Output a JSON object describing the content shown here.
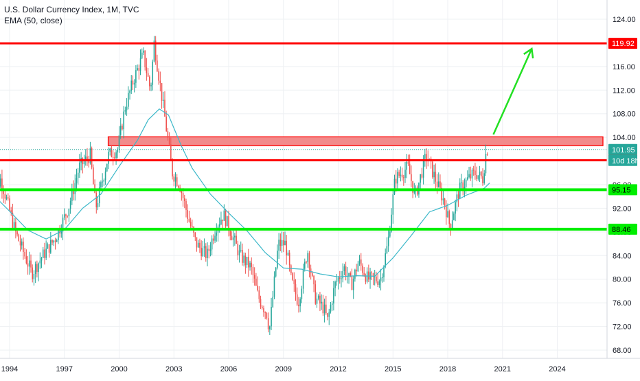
{
  "legend": {
    "title": "U.S. Dollar Currency Index, 1M, TVC",
    "indicator": "EMA (50, close)"
  },
  "colors": {
    "up": "#26a69a",
    "down": "#ef5350",
    "ema": "#3cb8c9",
    "resistance": "#ff0000",
    "support": "#00ee00",
    "zone_fill": "#f28b8b",
    "arrow": "#22e022",
    "last_price": "#26a69a",
    "countdown": "#26a69a"
  },
  "chart_data": {
    "type": "candlestick",
    "x_range": [
      1993.0,
      2026.6
    ],
    "ylim": [
      66.0,
      126.0
    ],
    "x_ticks": [
      "1994",
      "1997",
      "2000",
      "2003",
      "2006",
      "2009",
      "2012",
      "2015",
      "2018",
      "2021",
      "2024"
    ],
    "y_ticks": [
      "68.00",
      "72.00",
      "76.00",
      "80.00",
      "84.00",
      "88.00",
      "92.00",
      "96.00",
      "100.00",
      "104.00",
      "108.00",
      "112.00",
      "116.00",
      "120.00",
      "124.00"
    ],
    "candle_anchors": [
      [
        1993.0,
        93
      ],
      [
        1993.6,
        97
      ],
      [
        1994.4,
        88
      ],
      [
        1995.3,
        81
      ],
      [
        1995.9,
        84
      ],
      [
        1996.6,
        87
      ],
      [
        1997.3,
        92
      ],
      [
        1997.9,
        99
      ],
      [
        1998.5,
        101
      ],
      [
        1998.8,
        92
      ],
      [
        1999.5,
        101
      ],
      [
        2000.0,
        102
      ],
      [
        2000.4,
        109
      ],
      [
        2000.9,
        114
      ],
      [
        2001.4,
        118
      ],
      [
        2001.8,
        112
      ],
      [
        2002.0,
        120
      ],
      [
        2002.6,
        107
      ],
      [
        2003.0,
        98
      ],
      [
        2003.4,
        96
      ],
      [
        2003.9,
        90
      ],
      [
        2004.3,
        86
      ],
      [
        2004.9,
        84
      ],
      [
        2005.4,
        89
      ],
      [
        2005.8,
        91
      ],
      [
        2006.2,
        88
      ],
      [
        2006.7,
        84
      ],
      [
        2007.3,
        82
      ],
      [
        2007.7,
        77
      ],
      [
        2008.2,
        74
      ],
      [
        2008.3,
        71
      ],
      [
        2008.8,
        86
      ],
      [
        2009.2,
        86
      ],
      [
        2009.5,
        80
      ],
      [
        2009.9,
        76
      ],
      [
        2010.4,
        85
      ],
      [
        2010.8,
        77
      ],
      [
        2011.3,
        75
      ],
      [
        2011.5,
        73
      ],
      [
        2011.9,
        79
      ],
      [
        2012.4,
        82
      ],
      [
        2012.8,
        79
      ],
      [
        2013.2,
        83
      ],
      [
        2013.7,
        80
      ],
      [
        2014.1,
        80
      ],
      [
        2014.4,
        80
      ],
      [
        2014.8,
        86
      ],
      [
        2015.2,
        97
      ],
      [
        2015.9,
        99
      ],
      [
        2016.3,
        94
      ],
      [
        2016.9,
        101
      ],
      [
        2017.4,
        97
      ],
      [
        2017.9,
        93
      ],
      [
        2018.2,
        89
      ],
      [
        2018.7,
        95
      ],
      [
        2019.2,
        97
      ],
      [
        2019.6,
        98
      ],
      [
        2020.0,
        97
      ],
      [
        2020.2,
        102
      ]
    ],
    "ema_points": [
      [
        1993.0,
        94.6
      ],
      [
        1994.0,
        91.5
      ],
      [
        1995.0,
        88.3
      ],
      [
        1996.0,
        86.8
      ],
      [
        1997.0,
        88.4
      ],
      [
        1998.0,
        92.0
      ],
      [
        1999.0,
        94.4
      ],
      [
        2000.0,
        99.1
      ],
      [
        2001.0,
        103.5
      ],
      [
        2001.6,
        107.0
      ],
      [
        2002.2,
        108.8
      ],
      [
        2002.7,
        107.8
      ],
      [
        2003.4,
        102.6
      ],
      [
        2004.0,
        98.8
      ],
      [
        2005.0,
        94.4
      ],
      [
        2006.0,
        91.2
      ],
      [
        2007.0,
        88.2
      ],
      [
        2008.0,
        84.5
      ],
      [
        2009.0,
        81.9
      ],
      [
        2010.0,
        81.7
      ],
      [
        2011.0,
        80.9
      ],
      [
        2012.0,
        80.4
      ],
      [
        2013.0,
        80.6
      ],
      [
        2014.0,
        80.5
      ],
      [
        2015.0,
        83.6
      ],
      [
        2016.0,
        87.4
      ],
      [
        2017.0,
        91.4
      ],
      [
        2018.0,
        92.5
      ],
      [
        2019.0,
        94.2
      ],
      [
        2020.0,
        95.4
      ],
      [
        2020.3,
        96.3
      ]
    ],
    "levels": [
      {
        "label": "119.92",
        "price": 119.92,
        "kind": "resistance"
      },
      {
        "label": "100.14",
        "price": 100.14,
        "kind": "resistance"
      },
      {
        "label": "95.15",
        "price": 95.15,
        "kind": "support"
      },
      {
        "label": "88.46",
        "price": 88.46,
        "kind": "support"
      }
    ],
    "zone": {
      "x_from": 1999.4,
      "x_to": 2026.5,
      "y_from": 102.6,
      "y_to": 104.1
    },
    "arrow": {
      "x_from": 2020.5,
      "y_from": 104.5,
      "x_to": 2022.6,
      "y_to": 119.0
    },
    "last_price": {
      "label": "101.95",
      "price": 101.95
    },
    "countdown": {
      "label": "10d 18h"
    }
  }
}
